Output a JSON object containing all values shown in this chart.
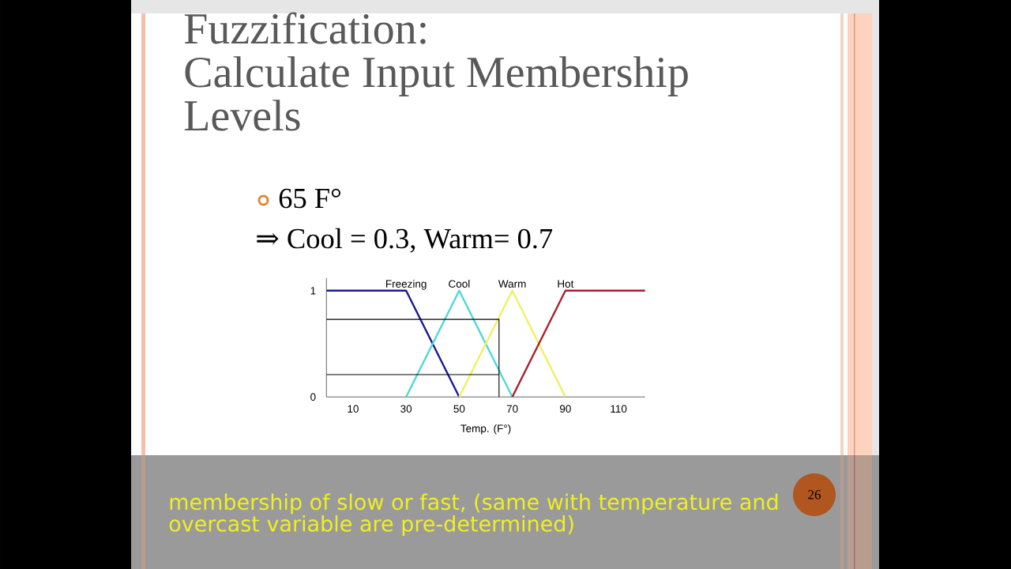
{
  "chart_data": {
    "type": "line",
    "title": "Fuzzification:",
    "subtitle": "Calculate Input Membership Levels",
    "xlabel": "Temp. (F°)",
    "series": [
      {
        "name": "Freezing",
        "color": "#1a1a8c",
        "x": [
          0,
          30,
          50
        ],
        "values": [
          1,
          1,
          0
        ]
      },
      {
        "name": "Cool",
        "color": "#4fd8d8",
        "x": [
          30,
          50,
          70
        ],
        "values": [
          0,
          1,
          0
        ]
      },
      {
        "name": "Warm",
        "color": "#f0f060",
        "x": [
          50,
          70,
          90
        ],
        "values": [
          0,
          1,
          0
        ]
      },
      {
        "name": "Hot",
        "color": "#b01c2c",
        "x": [
          70,
          90,
          120
        ],
        "values": [
          0,
          1,
          1
        ]
      },
      {
        "color": "#000000",
        "x": [
          0,
          65,
          65
        ],
        "values": [
          0.73,
          0.73,
          0
        ]
      },
      {
        "color": "#000000",
        "x": [
          0,
          65
        ],
        "values": [
          0.21,
          0.21
        ]
      }
    ],
    "xlim": [
      0,
      120
    ],
    "xticks": [
      10,
      30,
      50,
      70,
      90,
      110
    ],
    "ylim": [
      0,
      1.12
    ],
    "yticks": [
      0,
      1
    ],
    "annotations": [
      "65 F°",
      "⇒ Cool = 0.3, Warm= 0.7",
      "membership of slow or fast, (same with temperature and overcast variable are pre-determined)",
      "26"
    ]
  }
}
